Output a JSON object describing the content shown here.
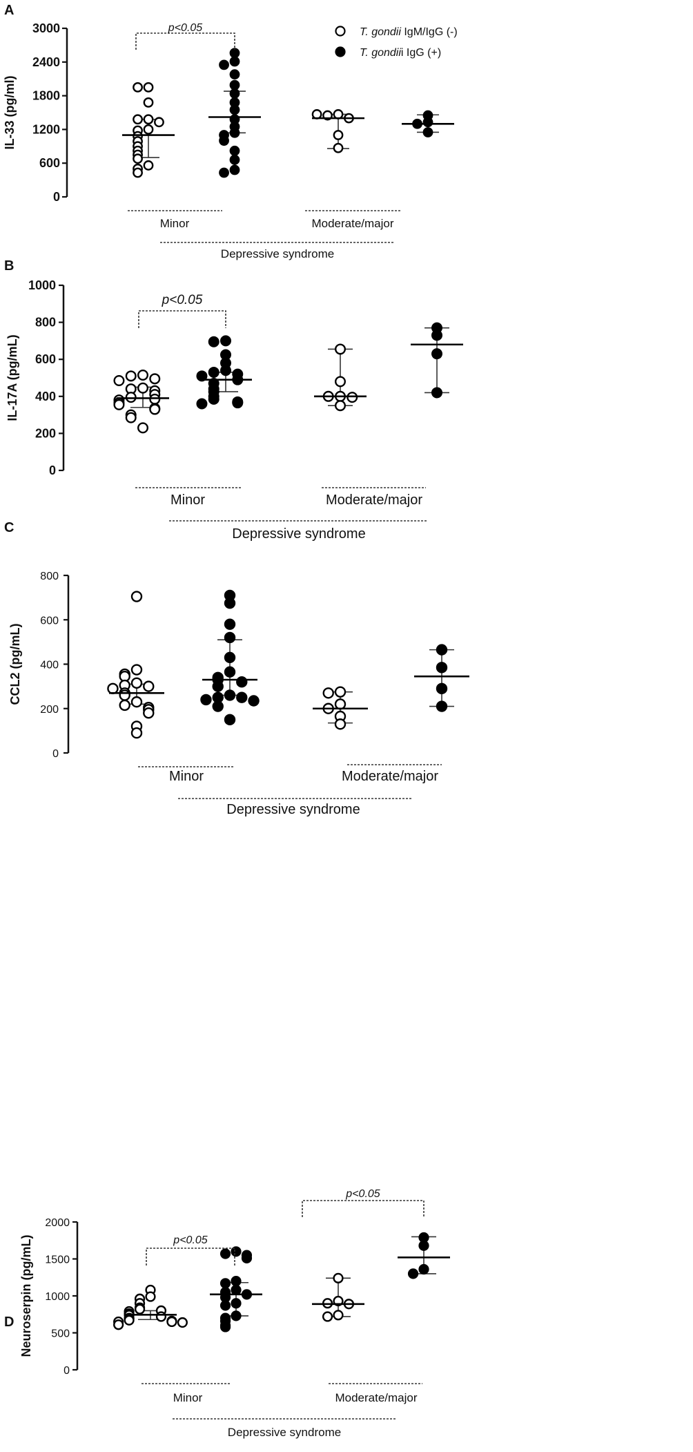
{
  "legend": {
    "open": {
      "italic": "T. gondii",
      "rest": " IgM/IgG (-)"
    },
    "filled": {
      "italic": "T. gondii",
      "rest": "i IgG (+)"
    }
  },
  "chart_data": [
    {
      "panel": "A",
      "type": "scatter",
      "ylabel": "IL-33 (pg/ml)",
      "ylim": [
        0,
        3000
      ],
      "yticks": [
        0,
        600,
        1200,
        1800,
        2400,
        3000
      ],
      "group_labels": [
        "Minor",
        "Moderate/major"
      ],
      "axis_group_label": "Depressive syndrome",
      "significance": [
        {
          "text": "p<0.05",
          "between": [
            0,
            1
          ]
        }
      ],
      "series": [
        {
          "name": "Minor IgM/IgG (-)",
          "filled": false,
          "median": 1100,
          "q1": 700,
          "q3": 1380,
          "points": [
            1950,
            1950,
            1680,
            1380,
            1380,
            1330,
            1200,
            1180,
            1080,
            990,
            900,
            820,
            750,
            680,
            560,
            500,
            430
          ]
        },
        {
          "name": "Minor IgG (+)",
          "filled": true,
          "median": 1420,
          "q1": 1140,
          "q3": 1880,
          "points": [
            2560,
            2410,
            2350,
            2180,
            1990,
            1840,
            1680,
            1550,
            1380,
            1250,
            1140,
            1100,
            1000,
            820,
            660,
            480,
            430
          ]
        },
        {
          "name": "Moderate/major IgM/IgG (-)",
          "filled": false,
          "median": 1400,
          "q1": 860,
          "q3": 1470,
          "points": [
            1470,
            1450,
            1400,
            1470,
            1100,
            870
          ]
        },
        {
          "name": "Moderate/major IgG (+)",
          "filled": true,
          "median": 1300,
          "q1": 1150,
          "q3": 1460,
          "points": [
            1450,
            1330,
            1300,
            1150
          ]
        }
      ]
    },
    {
      "panel": "B",
      "type": "scatter",
      "ylabel": "IL-17A (pg/mL)",
      "ylim": [
        0,
        1000
      ],
      "yticks": [
        0,
        200,
        400,
        600,
        800,
        1000
      ],
      "group_labels": [
        "Minor",
        "Moderate/major"
      ],
      "axis_group_label": "Depressive syndrome",
      "significance": [
        {
          "text": "p<0.05",
          "between": [
            0,
            1
          ]
        }
      ],
      "series": [
        {
          "name": "Minor IgM/IgG (-)",
          "filled": false,
          "median": 390,
          "q1": 340,
          "q3": 450,
          "points": [
            515,
            510,
            495,
            485,
            445,
            440,
            430,
            410,
            395,
            385,
            380,
            365,
            355,
            335,
            330,
            300,
            285,
            230
          ]
        },
        {
          "name": "Minor IgG (+)",
          "filled": true,
          "median": 490,
          "q1": 425,
          "q3": 530,
          "points": [
            700,
            695,
            625,
            580,
            540,
            530,
            520,
            510,
            490,
            470,
            440,
            425,
            400,
            385,
            370,
            365,
            360
          ]
        },
        {
          "name": "Moderate/major IgM/IgG (-)",
          "filled": false,
          "median": 400,
          "q1": 350,
          "q3": 655,
          "points": [
            655,
            480,
            400,
            400,
            395,
            350
          ]
        },
        {
          "name": "Moderate/major IgG (+)",
          "filled": true,
          "median": 680,
          "q1": 420,
          "q3": 770,
          "points": [
            770,
            730,
            630,
            420
          ]
        }
      ]
    },
    {
      "panel": "C",
      "type": "scatter",
      "ylabel": "CCL2 (pg/mL)",
      "ylim": [
        0,
        800
      ],
      "yticks": [
        0,
        200,
        400,
        600,
        800
      ],
      "group_labels": [
        "Minor",
        "Moderate/major"
      ],
      "axis_group_label": "Depressive syndrome",
      "significance": [],
      "series": [
        {
          "name": "Minor IgM/IgG (-)",
          "filled": false,
          "median": 270,
          "q1": 220,
          "q3": 310,
          "points": [
            705,
            375,
            355,
            345,
            315,
            305,
            300,
            290,
            270,
            260,
            230,
            215,
            205,
            195,
            180,
            120,
            90
          ]
        },
        {
          "name": "Minor IgG (+)",
          "filled": true,
          "median": 330,
          "q1": 260,
          "q3": 510,
          "points": [
            710,
            675,
            580,
            520,
            430,
            365,
            340,
            330,
            320,
            300,
            260,
            250,
            250,
            240,
            235,
            210,
            150
          ]
        },
        {
          "name": "Moderate/major IgM/IgG (-)",
          "filled": false,
          "median": 200,
          "q1": 135,
          "q3": 275,
          "points": [
            275,
            270,
            220,
            200,
            165,
            130
          ]
        },
        {
          "name": "Moderate/major IgG (+)",
          "filled": true,
          "median": 345,
          "q1": 210,
          "q3": 465,
          "points": [
            465,
            385,
            290,
            210
          ]
        }
      ]
    },
    {
      "panel": "D",
      "type": "scatter",
      "ylabel": "Neuroserpin (pg/mL)",
      "ylim": [
        0,
        2000
      ],
      "yticks": [
        0,
        500,
        1000,
        1500,
        2000
      ],
      "group_labels": [
        "Minor",
        "Moderate/major"
      ],
      "axis_group_label": "Depressive syndrome",
      "significance": [
        {
          "text": "p<0.05",
          "between": [
            0,
            1
          ]
        },
        {
          "text": "p<0.05",
          "between": [
            2,
            3
          ]
        }
      ],
      "series": [
        {
          "name": "Minor IgM/IgG (-)",
          "filled": false,
          "median": 745,
          "q1": 680,
          "q3": 800,
          "points": [
            1080,
            990,
            960,
            900,
            840,
            820,
            800,
            790,
            760,
            740,
            720,
            700,
            690,
            670,
            660,
            650,
            650,
            640,
            610
          ]
        },
        {
          "name": "Minor IgG (+)",
          "filled": true,
          "median": 1020,
          "q1": 730,
          "q3": 1180,
          "points": [
            1600,
            1570,
            1550,
            1510,
            1200,
            1170,
            1080,
            1050,
            1020,
            980,
            900,
            870,
            730,
            700,
            660,
            600,
            580
          ]
        },
        {
          "name": "Moderate/major IgM/IgG (-)",
          "filled": false,
          "median": 890,
          "q1": 720,
          "q3": 1240,
          "points": [
            1240,
            930,
            900,
            890,
            740,
            720
          ]
        },
        {
          "name": "Moderate/major IgG (+)",
          "filled": true,
          "median": 1520,
          "q1": 1300,
          "q3": 1800,
          "points": [
            1790,
            1680,
            1360,
            1300
          ]
        }
      ]
    }
  ]
}
